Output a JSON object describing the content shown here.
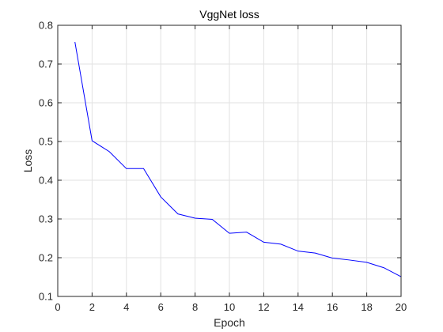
{
  "chart_data": {
    "type": "line",
    "title": "VggNet loss",
    "xlabel": "Epoch",
    "ylabel": "Loss",
    "xlim": [
      0,
      20
    ],
    "ylim": [
      0.1,
      0.8
    ],
    "xticks": [
      0,
      2,
      4,
      6,
      8,
      10,
      12,
      14,
      16,
      18,
      20
    ],
    "yticks": [
      0.1,
      0.2,
      0.3,
      0.4,
      0.5,
      0.6,
      0.7,
      0.8
    ],
    "xtick_labels": [
      "0",
      "2",
      "4",
      "6",
      "8",
      "10",
      "12",
      "14",
      "16",
      "18",
      "20"
    ],
    "ytick_labels": [
      "0.1",
      "0.2",
      "0.3",
      "0.4",
      "0.5",
      "0.6",
      "0.7",
      "0.8"
    ],
    "grid": true,
    "line_color": "#0000ff",
    "series": [
      {
        "x": [
          1,
          2,
          3,
          4,
          5,
          6,
          7,
          8,
          9,
          10,
          11,
          12,
          13,
          14,
          15,
          16,
          17,
          18,
          19,
          20
        ],
        "values": [
          0.757,
          0.502,
          0.474,
          0.43,
          0.43,
          0.357,
          0.313,
          0.302,
          0.299,
          0.263,
          0.266,
          0.24,
          0.235,
          0.217,
          0.212,
          0.199,
          0.194,
          0.188,
          0.174,
          0.151
        ]
      }
    ]
  }
}
